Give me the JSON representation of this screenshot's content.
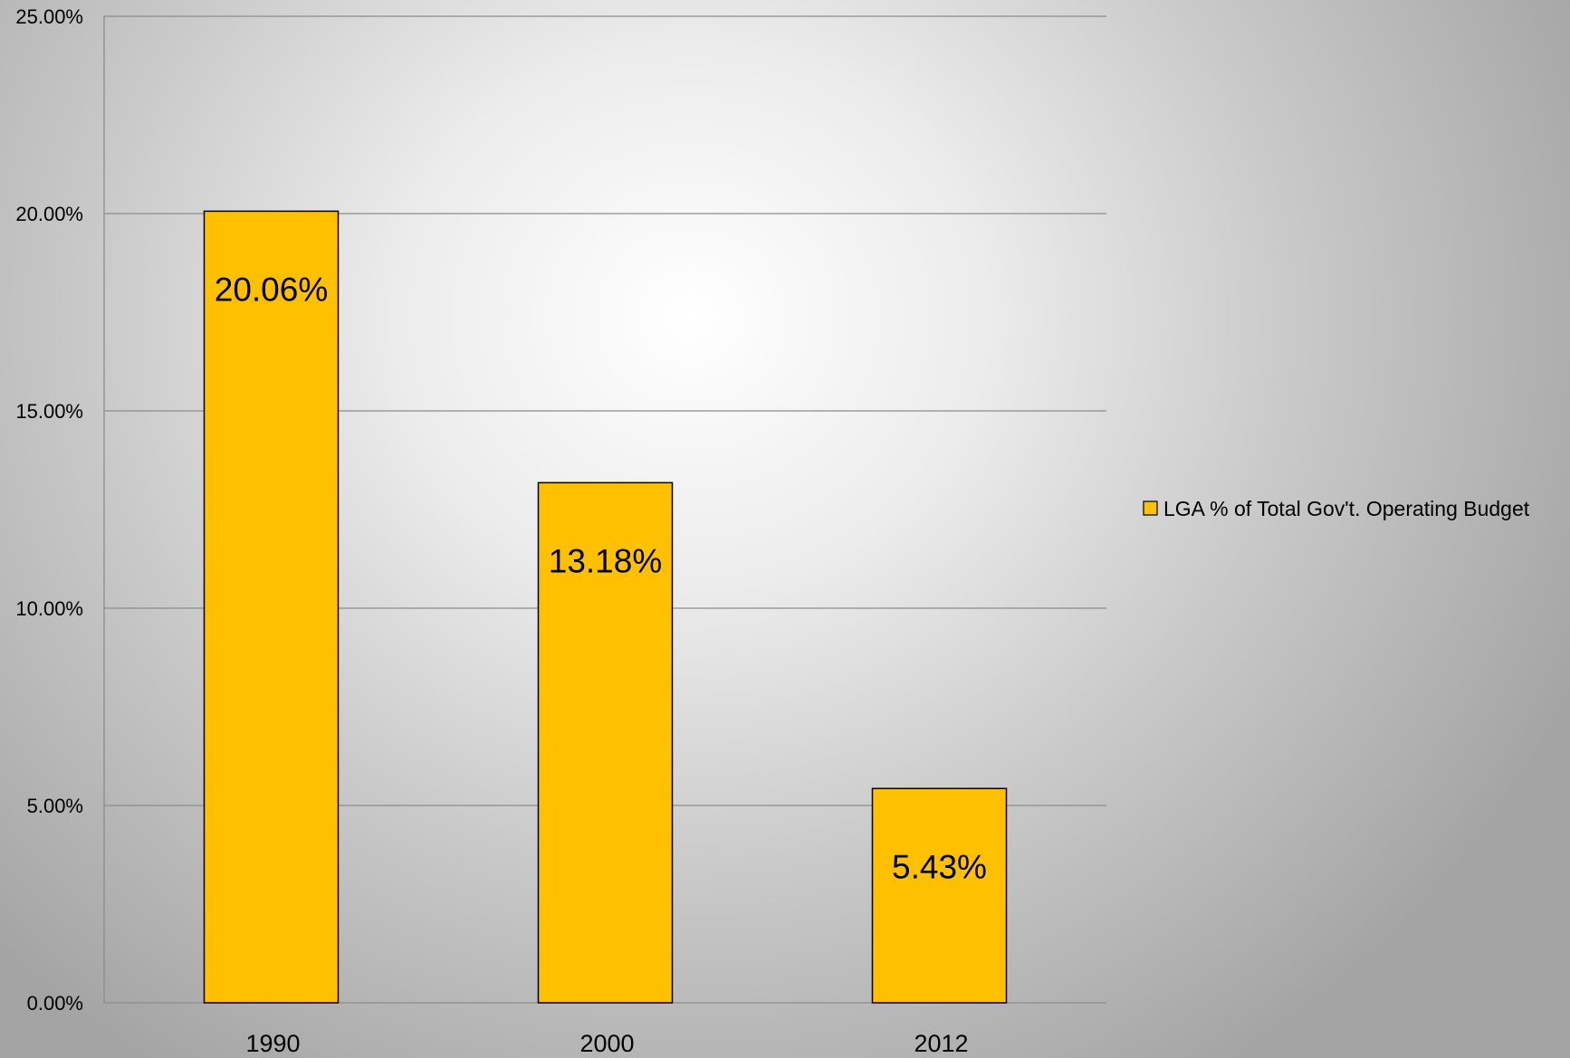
{
  "chart_data": {
    "type": "bar",
    "categories": [
      "1990",
      "2000",
      "2012"
    ],
    "series": [
      {
        "name": "LGA % of Total Gov't. Operating Budget",
        "values": [
          20.06,
          13.18,
          5.43
        ],
        "data_labels": [
          "20.06%",
          "13.18%",
          "5.43%"
        ],
        "color": "#FFC000"
      }
    ],
    "ylim": [
      0,
      25
    ],
    "yticks": [
      0,
      5,
      10,
      15,
      20,
      25
    ],
    "ytick_labels": [
      "0.00%",
      "5.00%",
      "10.00%",
      "15.00%",
      "20.00%",
      "25.00%"
    ],
    "grid": true,
    "legend_position": "right",
    "colors": {
      "bar_fill": "#FFC000",
      "bar_stroke": "#000000",
      "gridline": "#8c8c8c"
    }
  }
}
